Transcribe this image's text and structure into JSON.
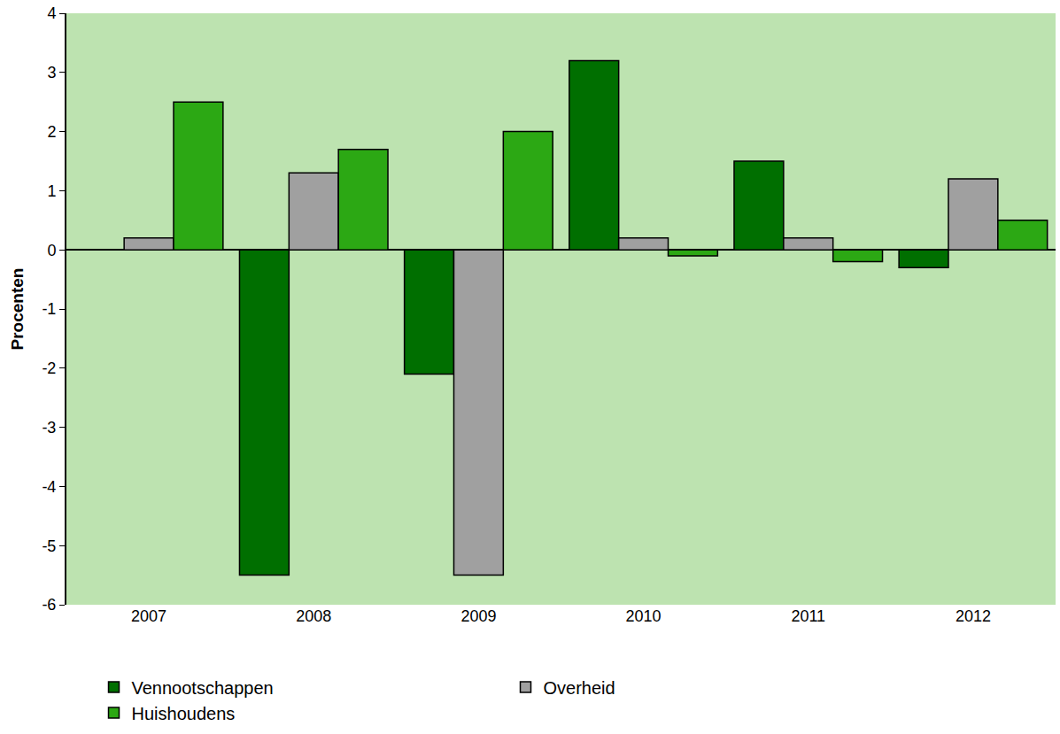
{
  "chart_data": {
    "type": "bar",
    "y_label": "Procenten",
    "categories": [
      "2007",
      "2008",
      "2009",
      "2010",
      "2011",
      "2012"
    ],
    "series": [
      {
        "name": "Vennootschappen",
        "color": "#006f00",
        "values": [
          0,
          -5.5,
          -2.1,
          3.2,
          1.5,
          -0.3
        ]
      },
      {
        "name": "Overheid",
        "color": "#a0a0a0",
        "values": [
          0.2,
          1.3,
          -5.5,
          0.2,
          0.2,
          1.2
        ]
      },
      {
        "name": "Huishoudens",
        "color": "#2ca814",
        "values": [
          2.5,
          1.7,
          2.0,
          -0.1,
          -0.2,
          0.5
        ]
      }
    ],
    "ylim": [
      -6,
      4
    ],
    "yticks": [
      -6,
      -5,
      -4,
      -3,
      -2,
      -1,
      0,
      1,
      2,
      3,
      4
    ],
    "grid": false,
    "legend": "bottom"
  }
}
